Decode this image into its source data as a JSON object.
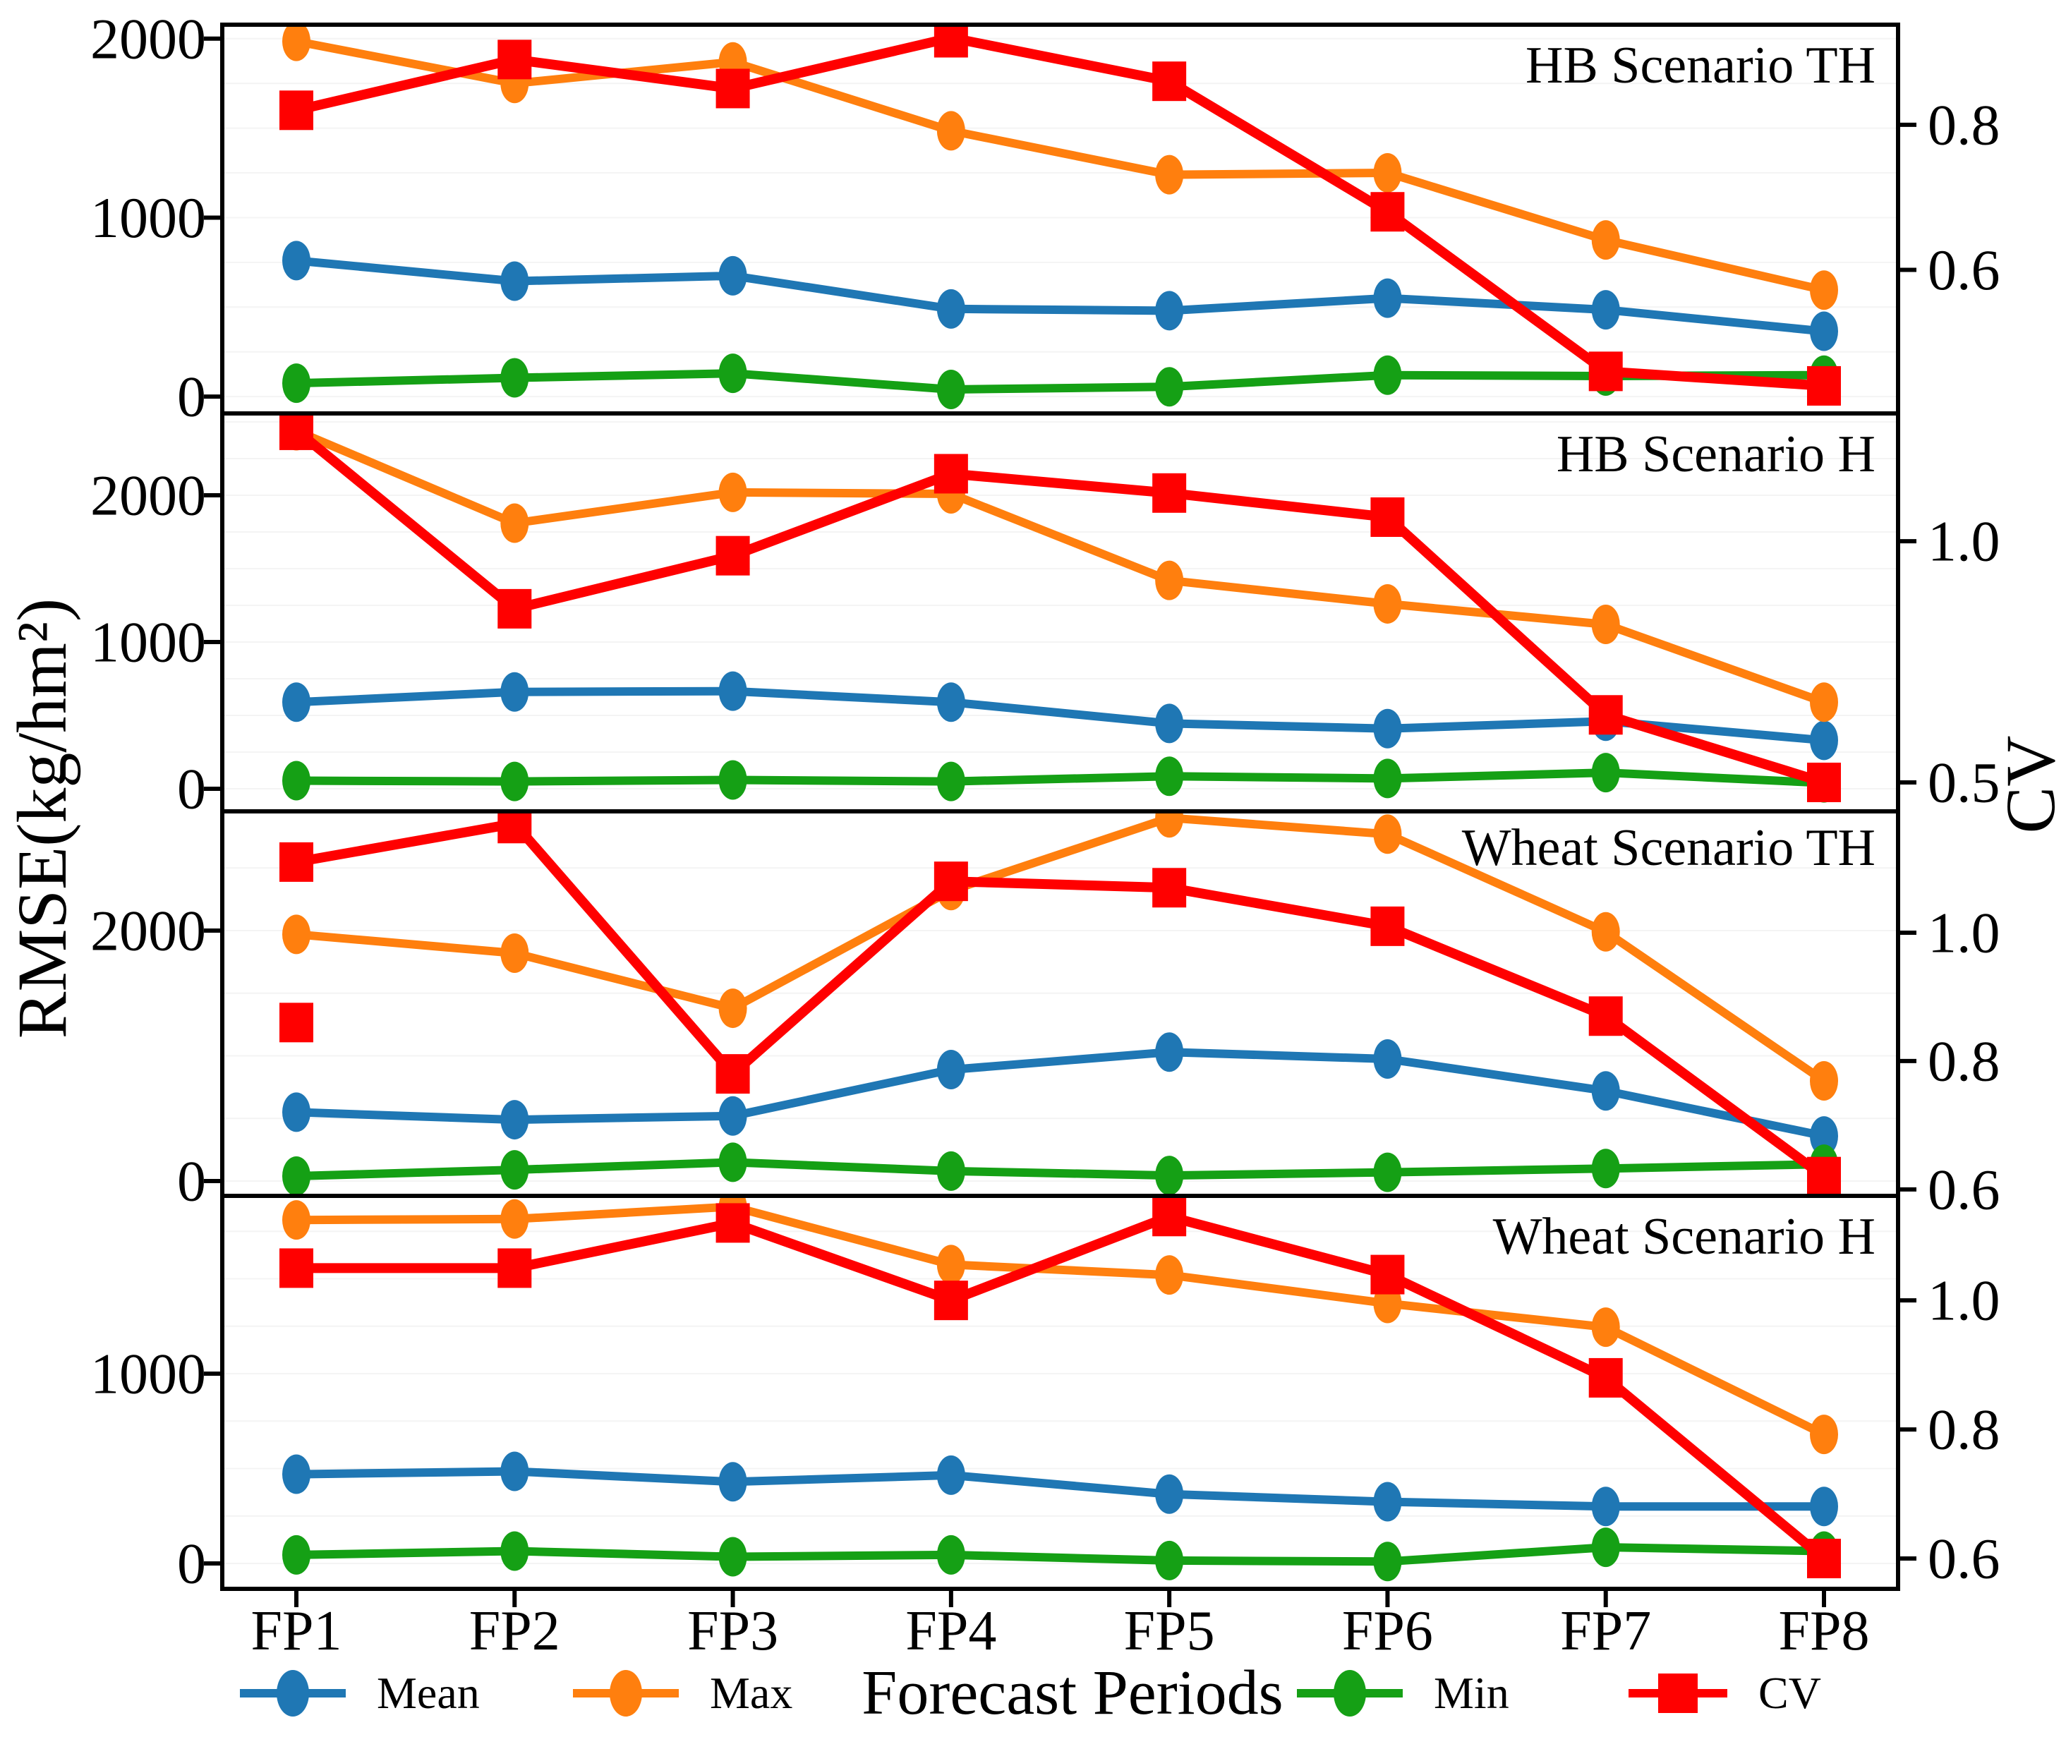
{
  "chart_data": {
    "type": "line",
    "categories": [
      "FP1",
      "FP2",
      "FP3",
      "FP4",
      "FP5",
      "FP6",
      "FP7",
      "FP8"
    ],
    "xlabel": "Forecast Periods",
    "ylabel_left": "RMSE(kg/hm²)",
    "ylabel_right": "CV",
    "grid": "faint-horizontal",
    "legend_position": "bottom-row",
    "colors": {
      "mean": "#1f77b4",
      "max": "#ff7f0e",
      "min": "#15a015",
      "cv": "#ff0000"
    },
    "legend": [
      {
        "label": "Mean",
        "marker": "circle",
        "color": "#1f77b4"
      },
      {
        "label": "Max",
        "marker": "circle",
        "color": "#ff7f0e"
      },
      {
        "label": "Min",
        "marker": "circle",
        "color": "#15a015"
      },
      {
        "label": "CV",
        "marker": "square",
        "color": "#ff0000"
      }
    ],
    "panels": [
      {
        "title": "HB Scenario TH",
        "ylim_left": [
          -94,
          2078
        ],
        "yticks_left": [
          {
            "v": 2000,
            "label": "2000"
          },
          {
            "v": 1000,
            "label": "1000"
          },
          {
            "v": 0,
            "label": "0"
          }
        ],
        "ylim_right": [
          0.402,
          0.938
        ],
        "yticks_right": [
          {
            "v": 0.8,
            "label": "0.8"
          },
          {
            "v": 0.6,
            "label": "0.6"
          }
        ],
        "grid_step": 250,
        "series": [
          {
            "name": "Mean",
            "axis": "left",
            "marker": "circle",
            "color": "#1f77b4",
            "values": [
              760,
              645,
              675,
              490,
              480,
              550,
              485,
              365
            ]
          },
          {
            "name": "Max",
            "axis": "left",
            "marker": "circle",
            "color": "#ff7f0e",
            "values": [
              1985,
              1750,
              1870,
              1485,
              1240,
              1250,
              875,
              595
            ]
          },
          {
            "name": "Min",
            "axis": "left",
            "marker": "circle",
            "color": "#15a015",
            "values": [
              75,
              105,
              130,
              40,
              55,
              120,
              115,
              120
            ]
          },
          {
            "name": "CV",
            "axis": "right",
            "marker": "square",
            "color": "#ff0000",
            "values": [
              0.82,
              0.89,
              0.85,
              0.92,
              0.86,
              0.68,
              0.46,
              0.44
            ]
          }
        ]
      },
      {
        "title": "HB Scenario H",
        "ylim_left": [
          -154,
          2558
        ],
        "yticks_left": [
          {
            "v": 2000,
            "label": "2000"
          },
          {
            "v": 1000,
            "label": "1000"
          },
          {
            "v": 0,
            "label": "0"
          }
        ],
        "ylim_right": [
          0.44,
          1.265
        ],
        "yticks_right": [
          {
            "v": 1.0,
            "label": "1.0"
          },
          {
            "v": 0.5,
            "label": "0.5"
          }
        ],
        "grid_step": 250,
        "series": [
          {
            "name": "Mean",
            "axis": "left",
            "marker": "circle",
            "color": "#1f77b4",
            "values": [
              590,
              660,
              665,
              590,
              445,
              410,
              460,
              330
            ]
          },
          {
            "name": "Max",
            "axis": "left",
            "marker": "circle",
            "color": "#ff7f0e",
            "values": [
              2440,
              1810,
              2020,
              2010,
              1420,
              1260,
              1120,
              590
            ]
          },
          {
            "name": "Min",
            "axis": "left",
            "marker": "circle",
            "color": "#15a015",
            "values": [
              55,
              50,
              60,
              50,
              85,
              70,
              110,
              40
            ]
          },
          {
            "name": "CV",
            "axis": "right",
            "marker": "square",
            "color": "#ff0000",
            "values": [
              1.23,
              0.86,
              0.97,
              1.14,
              1.1,
              1.05,
              0.64,
              0.5
            ]
          }
        ]
      },
      {
        "title": "Wheat Scenario TH",
        "ylim_left": [
          -118,
          2952
        ],
        "yticks_left": [
          {
            "v": 2000,
            "label": "2000"
          },
          {
            "v": 0,
            "label": "0"
          }
        ],
        "ylim_right": [
          0.59,
          1.189
        ],
        "yticks_right": [
          {
            "v": 1.0,
            "label": "1.0"
          },
          {
            "v": 0.8,
            "label": "0.8"
          },
          {
            "v": 0.6,
            "label": "0.6"
          }
        ],
        "grid_step": 500,
        "series": [
          {
            "name": "Mean",
            "axis": "left",
            "marker": "circle",
            "color": "#1f77b4",
            "values": [
              550,
              490,
              520,
              890,
              1030,
              975,
              720,
              360
            ]
          },
          {
            "name": "Max",
            "axis": "left",
            "marker": "circle",
            "color": "#ff7f0e",
            "values": [
              1970,
              1820,
              1380,
              2320,
              2900,
              2770,
              1990,
              800
            ]
          },
          {
            "name": "Min",
            "axis": "left",
            "marker": "circle",
            "color": "#15a015",
            "values": [
              40,
              90,
              150,
              80,
              45,
              70,
              100,
              135
            ]
          },
          {
            "name": "CV",
            "axis": "right",
            "marker": "square",
            "color": "#ff0000",
            "values": [
              1.11,
              1.17,
              0.78,
              1.08,
              1.07,
              1.01,
              0.87,
              0.62
            ]
          }
        ],
        "extra_points": [
          {
            "series": "CV",
            "axis": "right",
            "marker": "square",
            "color": "#ff0000",
            "category": "FP1",
            "value": 0.86
          }
        ]
      },
      {
        "title": "Wheat Scenario H",
        "ylim_left": [
          -134,
          1937
        ],
        "yticks_left": [
          {
            "v": 1000,
            "label": "1000"
          },
          {
            "v": 0,
            "label": "0"
          }
        ],
        "ylim_right": [
          0.553,
          1.162
        ],
        "yticks_right": [
          {
            "v": 1.0,
            "label": "1.0"
          },
          {
            "v": 0.8,
            "label": "0.8"
          },
          {
            "v": 0.6,
            "label": "0.6"
          }
        ],
        "grid_step": 250,
        "series": [
          {
            "name": "Mean",
            "axis": "left",
            "marker": "circle",
            "color": "#1f77b4",
            "values": [
              470,
              485,
              430,
              465,
              365,
              325,
              300,
              300
            ]
          },
          {
            "name": "Max",
            "axis": "left",
            "marker": "circle",
            "color": "#ff7f0e",
            "values": [
              1810,
              1815,
              1880,
              1575,
              1520,
              1370,
              1245,
              680
            ]
          },
          {
            "name": "Min",
            "axis": "left",
            "marker": "circle",
            "color": "#15a015",
            "values": [
              45,
              65,
              35,
              45,
              15,
              10,
              85,
              65
            ]
          },
          {
            "name": "CV",
            "axis": "right",
            "marker": "square",
            "color": "#ff0000",
            "values": [
              1.05,
              1.05,
              1.12,
              1.0,
              1.13,
              1.04,
              0.88,
              0.6
            ]
          }
        ]
      }
    ]
  }
}
